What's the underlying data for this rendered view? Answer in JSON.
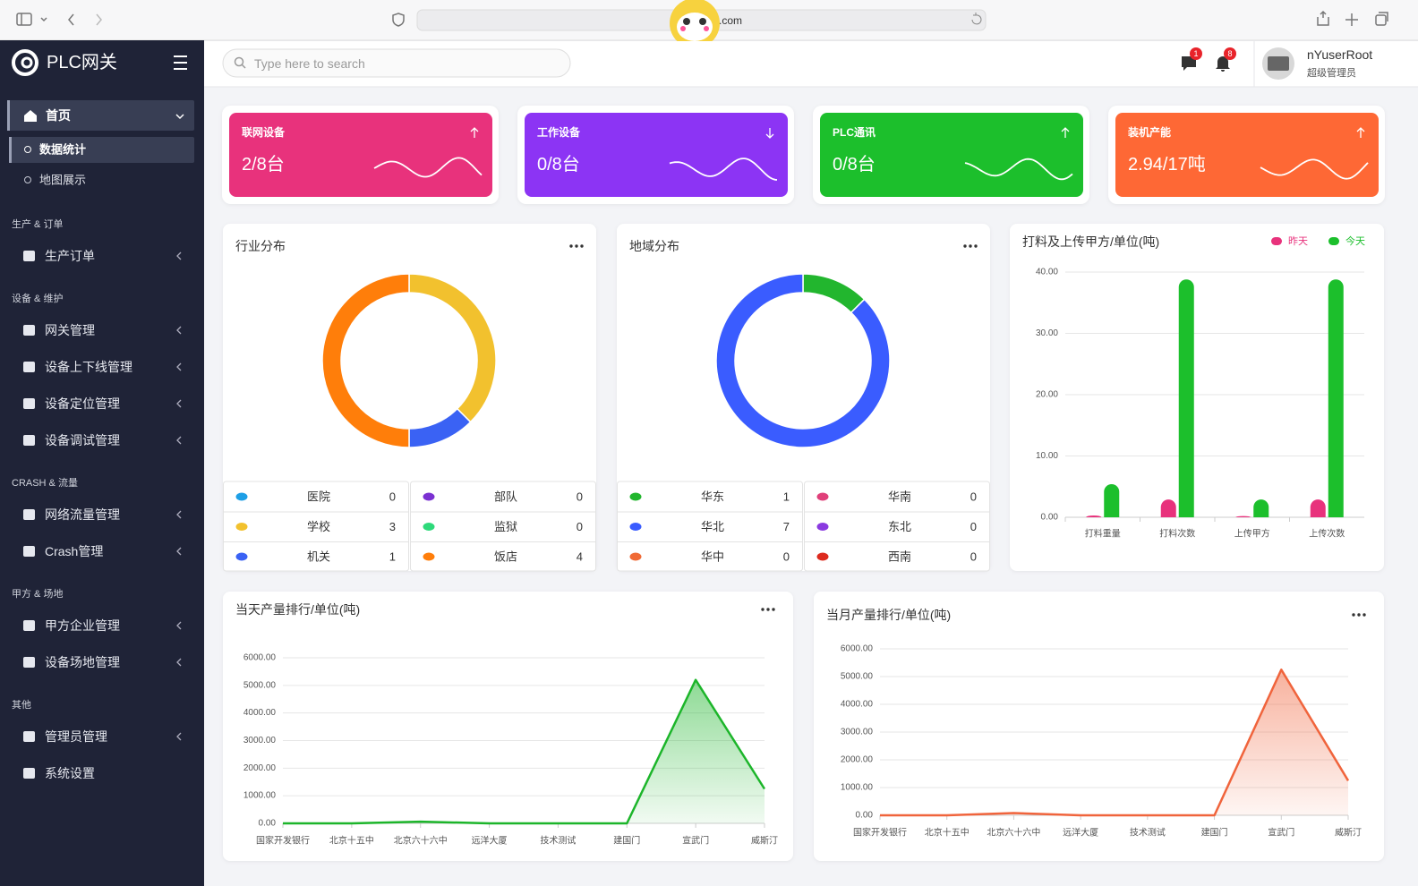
{
  "browser": {
    "url": ".com"
  },
  "sidebar": {
    "brand": "PLC网关",
    "home": {
      "label": "首页",
      "children": [
        "数据统计",
        "地图展示"
      ]
    },
    "sections": [
      {
        "title": "生产 & 订单",
        "items": [
          {
            "label": "生产订单",
            "expandable": true
          }
        ]
      },
      {
        "title": "设备 & 维护",
        "items": [
          {
            "label": "网关管理",
            "expandable": true
          },
          {
            "label": "设备上下线管理",
            "expandable": true
          },
          {
            "label": "设备定位管理",
            "expandable": true
          },
          {
            "label": "设备调试管理",
            "expandable": true
          }
        ]
      },
      {
        "title": "CRASH & 流量",
        "items": [
          {
            "label": "网络流量管理",
            "expandable": true
          },
          {
            "label": "Crash管理",
            "expandable": true
          }
        ]
      },
      {
        "title": "甲方 & 场地",
        "items": [
          {
            "label": "甲方企业管理",
            "expandable": true
          },
          {
            "label": "设备场地管理",
            "expandable": true
          }
        ]
      },
      {
        "title": "其他",
        "items": [
          {
            "label": "管理员管理",
            "expandable": true
          },
          {
            "label": "系统设置",
            "expandable": false
          }
        ]
      }
    ]
  },
  "topbar": {
    "search_placeholder": "Type here to search",
    "message_count": 1,
    "notification_count": 8,
    "user_name": "nYuserRoot",
    "user_role": "超级管理员"
  },
  "stat_cards": [
    {
      "label": "联网设备",
      "value": "2/8台",
      "trend": "up",
      "color": "#e8327c"
    },
    {
      "label": "工作设备",
      "value": "0/8台",
      "trend": "down",
      "color": "#8c34f4"
    },
    {
      "label": "PLC通讯",
      "value": "0/8台",
      "trend": "up",
      "color": "#1cbf2c"
    },
    {
      "label": "装机产能",
      "value": "2.94/17吨",
      "trend": "up",
      "color": "#fe6835"
    }
  ],
  "industry_chart": {
    "type": "donut",
    "title": "行业分布",
    "categories": [
      "医院",
      "学校",
      "机关",
      "部队",
      "监狱",
      "饭店"
    ],
    "values": [
      0,
      3,
      1,
      0,
      0,
      4
    ],
    "colors": [
      "#1e9fe6",
      "#f2c12e",
      "#3a62f4",
      "#7b31d2",
      "#2ed97a",
      "#ff7e0a"
    ]
  },
  "region_chart": {
    "type": "donut",
    "title": "地域分布",
    "categories": [
      "华东",
      "华北",
      "华中",
      "华南",
      "东北",
      "西南"
    ],
    "values": [
      1,
      7,
      0,
      0,
      0,
      0
    ],
    "colors": [
      "#22b62e",
      "#3a5cff",
      "#f06a35",
      "#e0407a",
      "#8a3ae0",
      "#dd2a1e"
    ]
  },
  "upload_chart": {
    "type": "bar",
    "title": "打料及上传甲方/单位(吨)",
    "categories": [
      "打料重量",
      "打料次数",
      "上传甲方",
      "上传次数"
    ],
    "series": [
      {
        "name": "昨天",
        "color": "#e8327c",
        "values": [
          0.3,
          2.9,
          0.2,
          2.9
        ]
      },
      {
        "name": "今天",
        "color": "#1cbf2c",
        "values": [
          5.4,
          38.8,
          2.9,
          38.8
        ]
      }
    ],
    "ylim": [
      0,
      40
    ],
    "yticks": [
      {
        "value": 0,
        "label": "0.00"
      },
      {
        "value": 10,
        "label": "10.00"
      },
      {
        "value": 20,
        "label": "20.00"
      },
      {
        "value": 30,
        "label": "30.00"
      },
      {
        "value": 40,
        "label": "40.00"
      }
    ],
    "grid": true,
    "legend": "top-right"
  },
  "daily_chart": {
    "type": "area",
    "title": "当天产量排行/单位(吨)",
    "categories": [
      "国家开发银行",
      "北京十五中",
      "北京六十六中",
      "远洋大厦",
      "技术测试",
      "建国门",
      "宣武门",
      "威斯汀"
    ],
    "values": [
      0,
      0,
      60,
      0,
      0,
      0,
      5200,
      1250
    ],
    "color": "#1cb52a",
    "ylim": [
      0,
      6000
    ],
    "yticks": [
      {
        "value": 0,
        "label": "0.00"
      },
      {
        "value": 1000,
        "label": "1000.00"
      },
      {
        "value": 2000,
        "label": "2000.00"
      },
      {
        "value": 3000,
        "label": "3000.00"
      },
      {
        "value": 4000,
        "label": "4000.00"
      },
      {
        "value": 5000,
        "label": "5000.00"
      },
      {
        "value": 6000,
        "label": "6000.00"
      }
    ],
    "grid": true
  },
  "monthly_chart": {
    "type": "area",
    "title": "当月产量排行/单位(吨)",
    "categories": [
      "国家开发银行",
      "北京十五中",
      "北京六十六中",
      "远洋大厦",
      "技术测试",
      "建国门",
      "宣武门",
      "威斯汀"
    ],
    "values": [
      0,
      0,
      80,
      0,
      0,
      0,
      5250,
      1250
    ],
    "color": "#f0643c",
    "ylim": [
      0,
      6000
    ],
    "yticks": [
      {
        "value": 0,
        "label": "0.00"
      },
      {
        "value": 1000,
        "label": "1000.00"
      },
      {
        "value": 2000,
        "label": "2000.00"
      },
      {
        "value": 3000,
        "label": "3000.00"
      },
      {
        "value": 4000,
        "label": "4000.00"
      },
      {
        "value": 5000,
        "label": "5000.00"
      },
      {
        "value": 6000,
        "label": "6000.00"
      }
    ],
    "grid": true
  }
}
